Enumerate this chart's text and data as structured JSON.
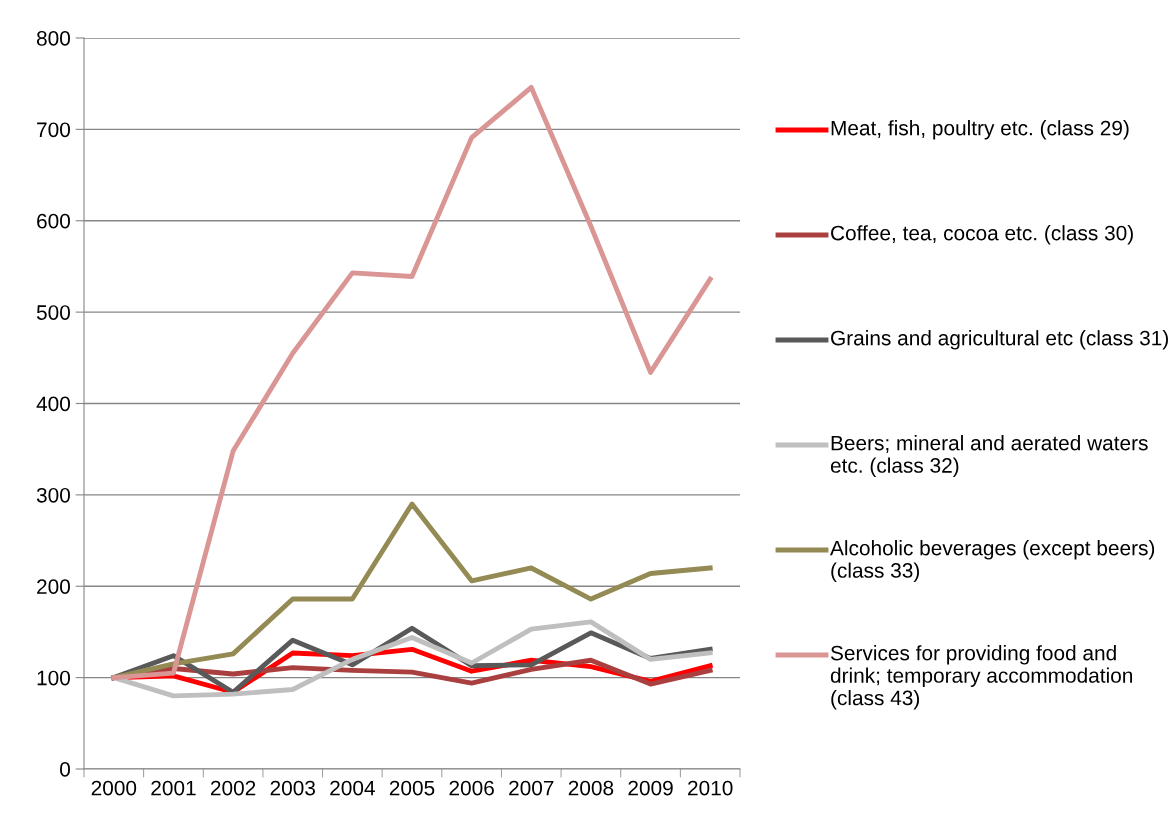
{
  "chart_data": {
    "type": "line",
    "categories": [
      "2000",
      "2001",
      "2002",
      "2003",
      "2004",
      "2005",
      "2006",
      "2007",
      "2008",
      "2009",
      "2010"
    ],
    "series": [
      {
        "name": "Meat, fish, poultry etc. (class 29)",
        "color": "#ff0000",
        "values": [
          100,
          102,
          84,
          127,
          124,
          131,
          107,
          119,
          112,
          96,
          113
        ]
      },
      {
        "name": "Coffee, tea, cocoa etc. (class 30)",
        "color": "#a9403f",
        "values": [
          100,
          110,
          104,
          111,
          108,
          106,
          94,
          109,
          119,
          93,
          108
        ]
      },
      {
        "name": "Grains and agricultural etc (class 31)",
        "color": "#595959",
        "values": [
          100,
          124,
          84,
          141,
          114,
          154,
          113,
          114,
          149,
          121,
          131
        ]
      },
      {
        "name": "Beers; mineral and aerated waters etc. (class 32)",
        "color": "#bfbfbf",
        "values": [
          100,
          80,
          82,
          87,
          120,
          144,
          116,
          153,
          161,
          120,
          127
        ]
      },
      {
        "name": "Alcoholic beverages (except beers) (class 33)",
        "color": "#948a54",
        "values": [
          100,
          115,
          126,
          186,
          186,
          290,
          206,
          220,
          186,
          214,
          220
        ]
      },
      {
        "name": "Services for providing food and drink; temporary accommodation (class 43)",
        "color": "#d99694",
        "values": [
          100,
          105,
          348,
          455,
          543,
          539,
          691,
          746,
          594,
          434,
          536
        ]
      }
    ],
    "ylim": [
      0,
      800
    ],
    "yticks": [
      0,
      100,
      200,
      300,
      400,
      500,
      600,
      700,
      800
    ],
    "grid": "y",
    "legend": "right",
    "marker": "none",
    "line_style": "solid"
  }
}
